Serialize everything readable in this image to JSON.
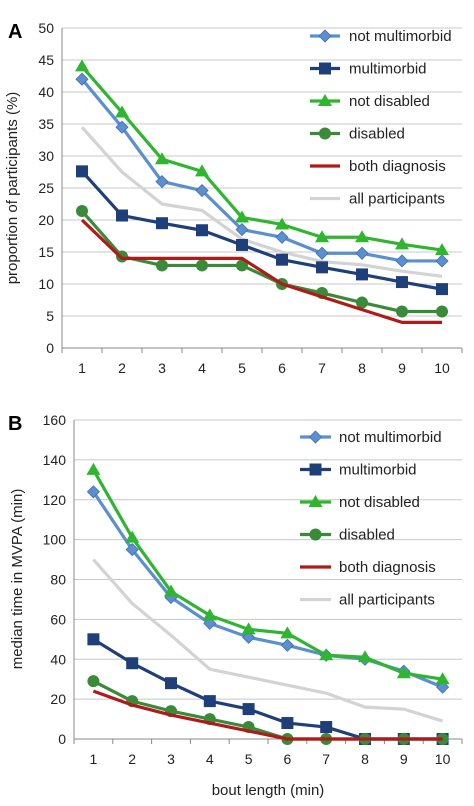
{
  "figure": {
    "series_styles": [
      {
        "name": "not multimorbid",
        "color": "#5b8fd0",
        "marker": "diamond"
      },
      {
        "name": "multimorbid",
        "color": "#1f3f7a",
        "marker": "square"
      },
      {
        "name": "not disabled",
        "color": "#2fb52f",
        "marker": "triangle"
      },
      {
        "name": "disabled",
        "color": "#3a8a3a",
        "marker": "circle"
      },
      {
        "name": "both diagnosis",
        "color": "#b01a1a",
        "marker": "none"
      },
      {
        "name": "all participants",
        "color": "#d3d3d3",
        "marker": "none"
      }
    ]
  },
  "chart_data": [
    {
      "panel": "A",
      "type": "line",
      "x": [
        1,
        2,
        3,
        4,
        5,
        6,
        7,
        8,
        9,
        10
      ],
      "xlabel": "",
      "ylabel": "proportion of participants (%)",
      "ylim": [
        0,
        50
      ],
      "yticks": [
        0,
        5,
        10,
        15,
        20,
        25,
        30,
        35,
        40,
        45,
        50
      ],
      "grid": "horizontal",
      "legend": "top-right",
      "series": [
        {
          "name": "not multimorbid",
          "values": [
            42,
            34.5,
            26,
            24.6,
            18.5,
            17.3,
            14.8,
            14.8,
            13.6,
            13.6
          ]
        },
        {
          "name": "multimorbid",
          "values": [
            27.6,
            20.7,
            19.5,
            18.4,
            16.1,
            13.8,
            12.6,
            11.5,
            10.3,
            9.2
          ]
        },
        {
          "name": "not disabled",
          "values": [
            44,
            36.8,
            29.5,
            27.6,
            20.4,
            19.3,
            17.3,
            17.3,
            16.2,
            15.3
          ]
        },
        {
          "name": "disabled",
          "values": [
            21.4,
            14.3,
            12.9,
            12.9,
            12.9,
            10,
            8.6,
            7.1,
            5.7,
            5.7
          ]
        },
        {
          "name": "both diagnosis",
          "values": [
            20,
            14,
            14,
            14,
            14,
            10,
            8,
            6,
            4,
            4
          ]
        },
        {
          "name": "all participants",
          "values": [
            34.5,
            27.5,
            22.5,
            21.5,
            17,
            15,
            13.5,
            13,
            12,
            11.2
          ]
        }
      ]
    },
    {
      "panel": "B",
      "type": "line",
      "x": [
        1,
        2,
        3,
        4,
        5,
        6,
        7,
        8,
        9,
        10
      ],
      "xlabel": "bout length (min)",
      "ylabel": "median time in MVPA (min)",
      "ylim": [
        0,
        160
      ],
      "yticks": [
        0,
        20,
        40,
        60,
        80,
        100,
        120,
        140,
        160
      ],
      "grid": "horizontal",
      "legend": "top-right",
      "series": [
        {
          "name": "not multimorbid",
          "values": [
            124,
            95,
            71,
            58,
            51,
            47,
            42,
            40,
            34,
            26
          ]
        },
        {
          "name": "multimorbid",
          "values": [
            50,
            38,
            28,
            19,
            15,
            8,
            6,
            0,
            0,
            0
          ]
        },
        {
          "name": "not disabled",
          "values": [
            135,
            101,
            74,
            62,
            55,
            53,
            42,
            41,
            33,
            30
          ]
        },
        {
          "name": "disabled",
          "values": [
            29,
            19,
            14,
            10,
            6,
            0,
            0,
            0,
            0,
            0
          ]
        },
        {
          "name": "both diagnosis",
          "values": [
            24,
            17,
            12,
            8,
            4,
            0,
            0,
            0,
            0,
            0
          ]
        },
        {
          "name": "all participants",
          "values": [
            90,
            68,
            52,
            35,
            31,
            27,
            23,
            16,
            15,
            9
          ]
        }
      ]
    }
  ]
}
